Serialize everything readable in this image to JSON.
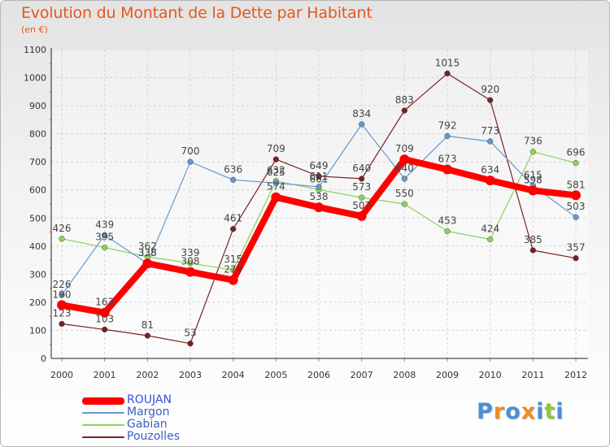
{
  "title": "Evolution du Montant de la Dette par Habitant",
  "subtitle": "(en €)",
  "logo": {
    "letters": [
      "P",
      "r",
      "o",
      "x",
      "i",
      "t",
      "i"
    ],
    "colors": [
      "#4b8ed8",
      "#f08c1e",
      "#4b8ed8",
      "#f08c1e",
      "#4b8ed8",
      "#8fc63d",
      "#4b8ed8"
    ]
  },
  "chart_data": {
    "type": "line",
    "title": "Evolution du Montant de la Dette par Habitant",
    "ylabel": "(en €)",
    "xlabel": "",
    "x": [
      "2000",
      "2001",
      "2002",
      "2003",
      "2004",
      "2005",
      "2006",
      "2007",
      "2008",
      "2009",
      "2010",
      "2011",
      "2012"
    ],
    "ylim": [
      0,
      1100
    ],
    "yticks": [
      0,
      100,
      200,
      300,
      400,
      500,
      600,
      700,
      800,
      900,
      1000,
      1100
    ],
    "grid": true,
    "legend_position": "bottom-left",
    "series": [
      {
        "name": "ROUJAN",
        "color": "#ff0000",
        "values": [
          190,
          163,
          338,
          308,
          279,
          574,
          538,
          507,
          709,
          673,
          634,
          598,
          581
        ]
      },
      {
        "name": "Margon",
        "color": "#6499cc",
        "values": [
          226,
          439,
          338,
          700,
          636,
          625,
          611,
          834,
          640,
          792,
          773,
          615,
          503
        ]
      },
      {
        "name": "Gabian",
        "color": "#8cd25a",
        "values": [
          426,
          395,
          362,
          339,
          315,
          632,
          601,
          573,
          550,
          453,
          424,
          736,
          696
        ]
      },
      {
        "name": "Pouzolles",
        "color": "#7a2121",
        "values": [
          123,
          103,
          81,
          53,
          461,
          709,
          649,
          640,
          883,
          1015,
          920,
          385,
          357
        ]
      }
    ]
  }
}
